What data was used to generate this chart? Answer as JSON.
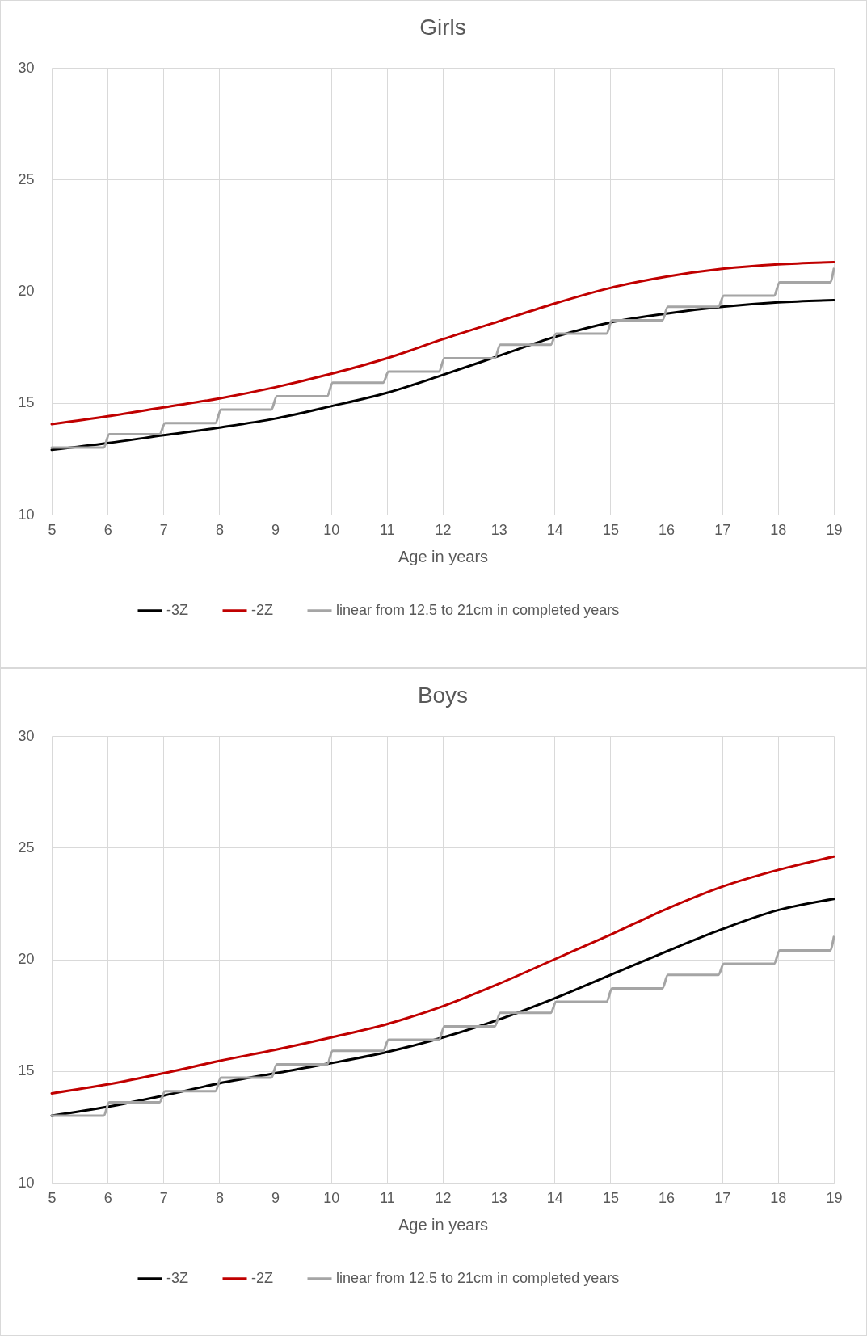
{
  "chart_data": [
    {
      "type": "line",
      "title": "Girls",
      "xlabel": "Age in years",
      "xlim": [
        5,
        19
      ],
      "xticks": [
        5,
        6,
        7,
        8,
        9,
        10,
        11,
        12,
        13,
        14,
        15,
        16,
        17,
        18,
        19
      ],
      "ylim": [
        10,
        30
      ],
      "yticks": [
        10,
        15,
        20,
        25,
        30
      ],
      "grid": true,
      "legend": "bottom",
      "line_style": "solid",
      "marker": "none",
      "x": [
        5,
        6,
        7,
        8,
        9,
        10,
        11,
        12,
        13,
        14,
        15,
        16,
        17,
        18,
        19
      ],
      "series": [
        {
          "name": "-3Z",
          "color": "#000000",
          "values": [
            12.9,
            13.2,
            13.55,
            13.9,
            14.3,
            14.85,
            15.45,
            16.25,
            17.1,
            17.95,
            18.6,
            19.0,
            19.3,
            19.5,
            19.6
          ]
        },
        {
          "name": "-2Z",
          "color": "#c00000",
          "values": [
            14.05,
            14.4,
            14.8,
            15.2,
            15.7,
            16.3,
            17.0,
            17.85,
            18.65,
            19.45,
            20.15,
            20.65,
            21.0,
            21.2,
            21.3
          ]
        },
        {
          "name": "linear from 12.5 to 21cm in completed years",
          "color": "#a5a5a5",
          "x": [
            5,
            5.93,
            6.03,
            6.93,
            7.03,
            7.93,
            8.03,
            8.93,
            9.03,
            9.93,
            10.03,
            10.93,
            11.03,
            11.93,
            12.03,
            12.93,
            13.03,
            13.93,
            14.03,
            14.93,
            15.03,
            15.93,
            16.03,
            16.93,
            17.03,
            17.93,
            18.03,
            18.93,
            19
          ],
          "values": [
            13.0,
            13.0,
            13.6,
            13.6,
            14.1,
            14.1,
            14.7,
            14.7,
            15.3,
            15.3,
            15.9,
            15.9,
            16.4,
            16.4,
            17.0,
            17.0,
            17.6,
            17.6,
            18.1,
            18.1,
            18.7,
            18.7,
            19.3,
            19.3,
            19.8,
            19.8,
            20.4,
            20.4,
            21.0
          ]
        }
      ]
    },
    {
      "type": "line",
      "title": "Boys",
      "xlabel": "Age in years",
      "xlim": [
        5,
        19
      ],
      "xticks": [
        5,
        6,
        7,
        8,
        9,
        10,
        11,
        12,
        13,
        14,
        15,
        16,
        17,
        18,
        19
      ],
      "ylim": [
        10,
        30
      ],
      "yticks": [
        10,
        15,
        20,
        25,
        30
      ],
      "grid": true,
      "legend": "bottom",
      "line_style": "solid",
      "marker": "none",
      "x": [
        5,
        6,
        7,
        8,
        9,
        10,
        11,
        12,
        13,
        14,
        15,
        16,
        17,
        18,
        19
      ],
      "series": [
        {
          "name": "-3Z",
          "color": "#000000",
          "values": [
            13.0,
            13.4,
            13.9,
            14.45,
            14.9,
            15.35,
            15.85,
            16.5,
            17.3,
            18.25,
            19.3,
            20.35,
            21.35,
            22.2,
            22.7
          ]
        },
        {
          "name": "-2Z",
          "color": "#c00000",
          "values": [
            14.0,
            14.4,
            14.9,
            15.45,
            15.95,
            16.5,
            17.1,
            17.9,
            18.9,
            20.0,
            21.1,
            22.25,
            23.25,
            24.0,
            24.6
          ]
        },
        {
          "name": "linear from 12.5 to 21cm in completed years",
          "color": "#a5a5a5",
          "x": [
            5,
            5.93,
            6.03,
            6.93,
            7.03,
            7.93,
            8.03,
            8.93,
            9.03,
            9.93,
            10.03,
            10.93,
            11.03,
            11.93,
            12.03,
            12.93,
            13.03,
            13.93,
            14.03,
            14.93,
            15.03,
            15.93,
            16.03,
            16.93,
            17.03,
            17.93,
            18.03,
            18.93,
            19
          ],
          "values": [
            13.0,
            13.0,
            13.6,
            13.6,
            14.1,
            14.1,
            14.7,
            14.7,
            15.3,
            15.3,
            15.9,
            15.9,
            16.4,
            16.4,
            17.0,
            17.0,
            17.6,
            17.6,
            18.1,
            18.1,
            18.7,
            18.7,
            19.3,
            19.3,
            19.8,
            19.8,
            20.4,
            20.4,
            21.0
          ]
        }
      ]
    }
  ]
}
